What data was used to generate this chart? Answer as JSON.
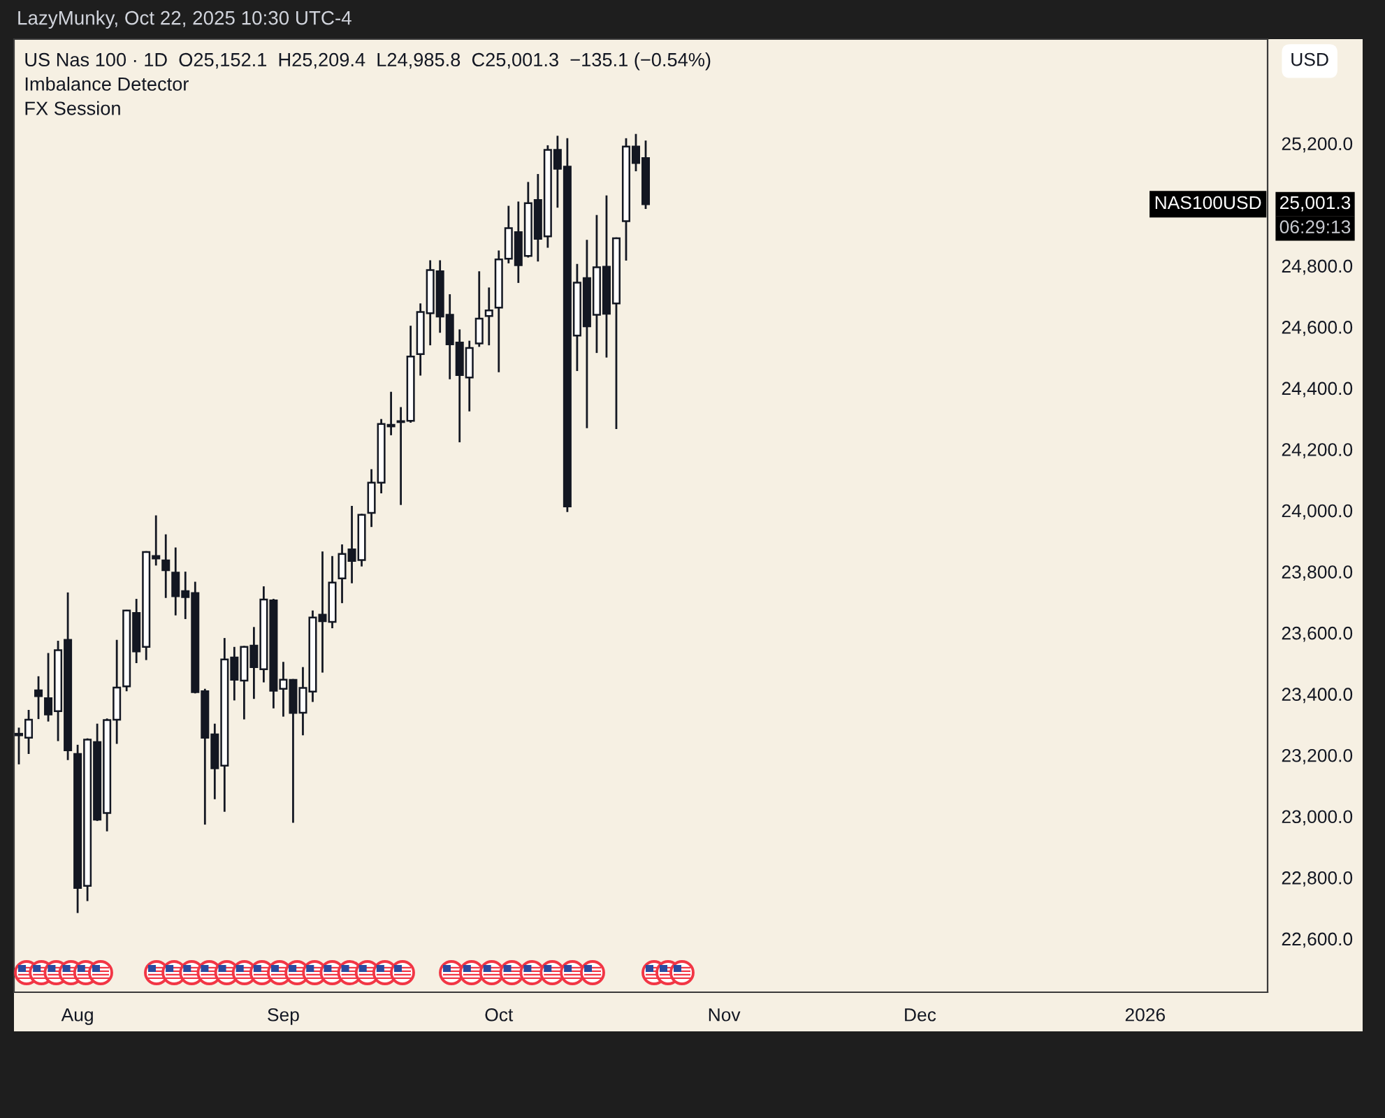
{
  "chart_data": {
    "type": "candlestick",
    "title": "US Nas 100 · 1D  O25,152.1  H25,209.4  L24,985.8  C25,001.3  −135.1 (−0.54%)",
    "ylabel": "USD",
    "annotations": [
      "LazyMunky, Oct 22, 2025 10:30 UTC-4",
      "Imbalance Detector",
      "FX Session",
      "NAS100USD",
      "25,001.3",
      "06:29:13"
    ],
    "categories": [
      null,
      null,
      null,
      null,
      null,
      null,
      "Aug",
      null,
      null,
      null,
      null,
      null,
      null,
      null,
      null,
      null,
      null,
      null,
      null,
      null,
      null,
      null,
      null,
      null,
      null,
      null,
      null,
      "Sep",
      null,
      null,
      null,
      null,
      null,
      null,
      null,
      null,
      null,
      null,
      null,
      null,
      null,
      null,
      null,
      null,
      null,
      null,
      null,
      null,
      null,
      "Oct",
      null,
      null,
      null,
      null,
      null,
      null,
      null,
      null,
      null,
      null,
      null,
      null,
      null,
      null,
      null,
      null,
      null,
      null,
      null,
      null,
      null,
      null,
      "Nov",
      null,
      null,
      null,
      null,
      null,
      null,
      null,
      null,
      null,
      null,
      null,
      null,
      null,
      null,
      null,
      null,
      null,
      null,
      null,
      "Dec",
      null,
      null,
      null,
      null,
      null,
      null,
      null,
      null,
      null,
      null,
      null,
      null,
      null,
      null,
      null,
      null,
      null,
      null,
      null,
      null,
      null,
      null,
      "2026",
      null,
      null,
      null,
      null,
      null,
      null,
      null,
      null,
      null,
      null,
      null,
      null
    ],
    "ohlc": [
      [
        23265,
        23290,
        23170,
        23270
      ],
      [
        23257,
        23348,
        23204,
        23316
      ],
      [
        23412,
        23458,
        23318,
        23393
      ],
      [
        23386,
        23534,
        23310,
        23333
      ],
      [
        23344,
        23574,
        23246,
        23543
      ],
      [
        23577,
        23732,
        23184,
        23216
      ],
      [
        23204,
        23234,
        22684,
        22766
      ],
      [
        22773,
        23255,
        22723,
        23251
      ],
      [
        23243,
        23303,
        22985,
        22989
      ],
      [
        23011,
        23320,
        22951,
        23315
      ],
      [
        23316,
        23577,
        23237,
        23421
      ],
      [
        23425,
        23675,
        23409,
        23673
      ],
      [
        23665,
        23711,
        23501,
        23539
      ],
      [
        23554,
        23867,
        23511,
        23864
      ],
      [
        23851,
        23984,
        23820,
        23843
      ],
      [
        23837,
        23922,
        23714,
        23805
      ],
      [
        23797,
        23879,
        23657,
        23720
      ],
      [
        23736,
        23800,
        23645,
        23717
      ],
      [
        23730,
        23767,
        23402,
        23406
      ],
      [
        23409,
        23417,
        22973,
        23257
      ],
      [
        23268,
        23303,
        23056,
        23157
      ],
      [
        23166,
        23583,
        23015,
        23513
      ],
      [
        23519,
        23554,
        23379,
        23447
      ],
      [
        23444,
        23557,
        23317,
        23554
      ],
      [
        23558,
        23619,
        23384,
        23488
      ],
      [
        23481,
        23752,
        23438,
        23709
      ],
      [
        23706,
        23711,
        23353,
        23411
      ],
      [
        23417,
        23505,
        23326,
        23447
      ],
      [
        23446,
        23449,
        22979,
        23338
      ],
      [
        23339,
        23488,
        23265,
        23420
      ],
      [
        23408,
        23673,
        23374,
        23650
      ],
      [
        23659,
        23866,
        23470,
        23638
      ],
      [
        23636,
        23851,
        23615,
        23764
      ],
      [
        23778,
        23889,
        23697,
        23858
      ],
      [
        23873,
        24015,
        23762,
        23835
      ],
      [
        23838,
        23989,
        23817,
        23986
      ],
      [
        23992,
        24135,
        23946,
        24091
      ],
      [
        24091,
        24299,
        24056,
        24283
      ],
      [
        24280,
        24388,
        24246,
        24275
      ],
      [
        24289,
        24338,
        24018,
        24292
      ],
      [
        24293,
        24604,
        24287,
        24503
      ],
      [
        24511,
        24677,
        24441,
        24649
      ],
      [
        24645,
        24818,
        24540,
        24786
      ],
      [
        24782,
        24818,
        24581,
        24634
      ],
      [
        24640,
        24707,
        24429,
        24543
      ],
      [
        24549,
        24592,
        24223,
        24443
      ],
      [
        24435,
        24555,
        24324,
        24531
      ],
      [
        24546,
        24782,
        24535,
        24627
      ],
      [
        24636,
        24729,
        24540,
        24654
      ],
      [
        24663,
        24850,
        24452,
        24821
      ],
      [
        24823,
        24996,
        24808,
        24923
      ],
      [
        24910,
        25010,
        24744,
        24802
      ],
      [
        24832,
        25074,
        24827,
        25005
      ],
      [
        25015,
        25100,
        24814,
        24888
      ],
      [
        24896,
        25194,
        24859,
        25179
      ],
      [
        25179,
        25225,
        24990,
        25117
      ],
      [
        25124,
        25217,
        23995,
        24013
      ],
      [
        24572,
        24806,
        24456,
        24745
      ],
      [
        24760,
        24885,
        24269,
        24602
      ],
      [
        24640,
        24966,
        24515,
        24795
      ],
      [
        24797,
        25030,
        24500,
        24643
      ],
      [
        24677,
        24893,
        24266,
        24890
      ],
      [
        24946,
        25217,
        24817,
        25190
      ],
      [
        25190,
        25231,
        25109,
        25136
      ],
      [
        25152.1,
        25209.4,
        24985.8,
        25001.3
      ],
      null,
      null,
      null,
      null,
      null,
      null,
      null,
      null,
      null,
      null,
      null,
      null,
      null,
      null,
      null,
      null,
      null,
      null,
      null,
      null,
      null,
      null,
      null,
      null,
      null,
      null,
      null,
      null,
      null,
      null,
      null,
      null,
      null,
      null,
      null,
      null,
      null,
      null,
      null,
      null,
      null,
      null,
      null,
      null,
      null,
      null,
      null,
      null,
      null,
      null,
      null,
      null,
      null,
      null,
      null,
      null,
      null,
      null,
      null,
      null,
      null,
      null,
      null
    ],
    "ylim": [
      22425,
      25541
    ],
    "yticks": [
      {
        "value": 22600,
        "label": "22,600.0"
      },
      {
        "value": 22800,
        "label": "22,800.0"
      },
      {
        "value": 23000,
        "label": "23,000.0"
      },
      {
        "value": 23200,
        "label": "23,200.0"
      },
      {
        "value": 23400,
        "label": "23,400.0"
      },
      {
        "value": 23600,
        "label": "23,600.0"
      },
      {
        "value": 23800,
        "label": "23,800.0"
      },
      {
        "value": 24000,
        "label": "24,000.0"
      },
      {
        "value": 24200,
        "label": "24,200.0"
      },
      {
        "value": 24400,
        "label": "24,400.0"
      },
      {
        "value": 24600,
        "label": "24,600.0"
      },
      {
        "value": 24800,
        "label": "24,800.0"
      },
      {
        "value": 25200,
        "label": "25,200.0"
      }
    ]
  }
}
